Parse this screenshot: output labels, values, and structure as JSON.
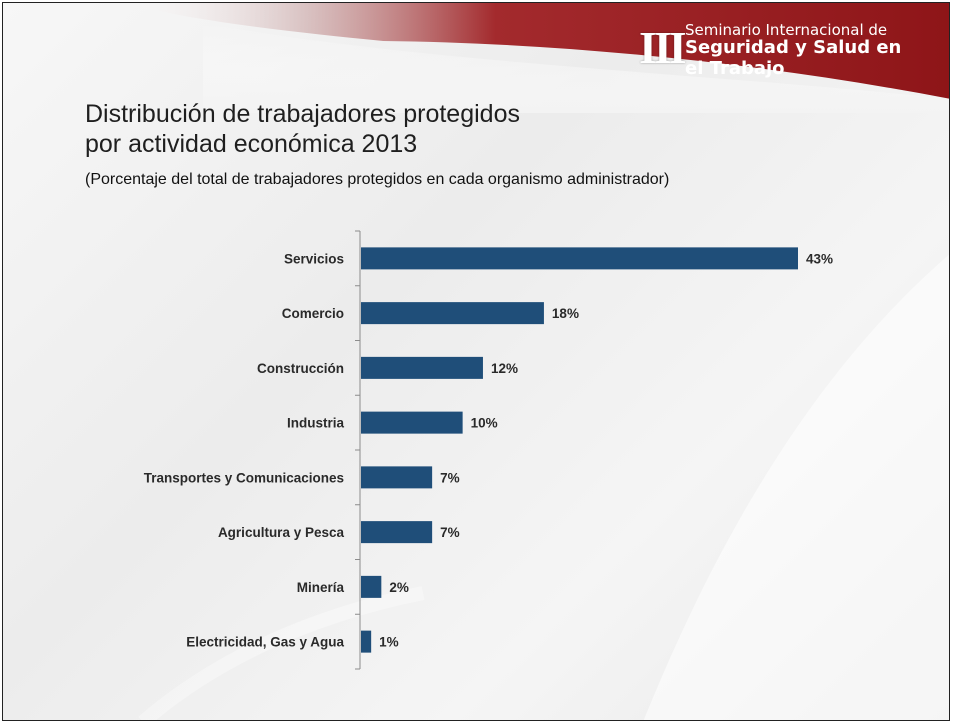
{
  "logo": {
    "roman": "III",
    "line1": "Seminario Internacional de",
    "line2": "Seguridad y Salud en",
    "line3": "el Trabajo"
  },
  "title_line1": "Distribución de trabajadores protegidos",
  "title_line2": "por actividad económica 2013",
  "subtitle": "(Porcentaje del total de trabajadores protegidos en cada organismo administrador)",
  "colors": {
    "bar": "#1f4e79",
    "axis": "#8c8c8c",
    "header": "#9b1c1f"
  },
  "chart_data": {
    "type": "bar",
    "orientation": "horizontal",
    "categories": [
      "Servicios",
      "Comercio",
      "Construcción",
      "Industria",
      "Transportes y Comunicaciones",
      "Agricultura y Pesca",
      "Minería",
      "Electricidad, Gas y Agua"
    ],
    "values": [
      43,
      18,
      12,
      10,
      7,
      7,
      2,
      1
    ],
    "value_labels": [
      "43%",
      "18%",
      "12%",
      "10%",
      "7%",
      "7%",
      "2%",
      "1%"
    ],
    "unit": "%",
    "xlim": [
      0,
      43
    ],
    "grid": false,
    "legend": "none"
  }
}
